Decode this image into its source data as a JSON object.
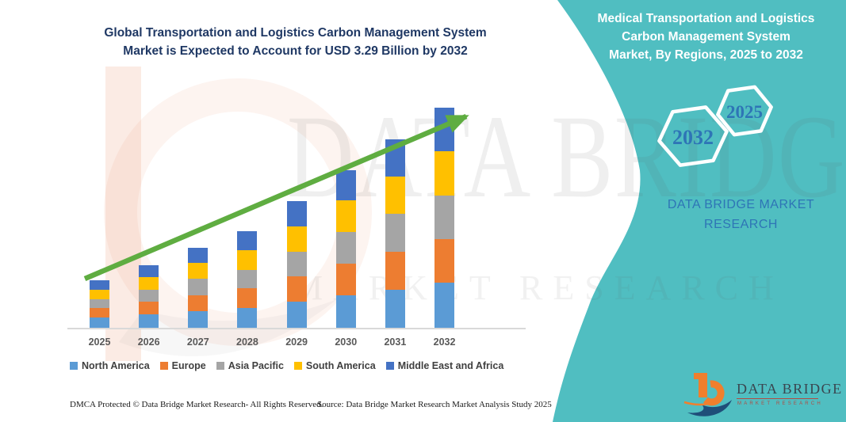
{
  "title": {
    "line1": "Global Transportation and Logistics Carbon Management System",
    "line2": "Market is Expected to Account for USD 3.29 Billion by 2032"
  },
  "right_panel": {
    "heading_lines": [
      "Medical Transportation and Logistics",
      "Carbon Management System",
      "Market, By Regions, 2025 to 2032"
    ],
    "hexagons": [
      {
        "label": "2032"
      },
      {
        "label": "2025"
      }
    ],
    "brand_line1": "DATA BRIDGE MARKET",
    "brand_line2": "RESEARCH"
  },
  "logo": {
    "wordmark": "DATA BRIDGE",
    "subtitle": "MARKET RESEARCH"
  },
  "watermark": {
    "big_text": "DATA BRIDGE",
    "sub_text": "MARKET RESEARCH"
  },
  "footer": {
    "left": "DMCA Protected © Data Bridge Market Research-  All Rights Reserved.",
    "right": "Source: Data Bridge Market Research  Market Analysis Study 2025"
  },
  "colors": {
    "teal_panel": "#50BEC1",
    "title_navy": "#1F3864",
    "arrow_green": "#5FAD41",
    "hexagon_year_blue": "#2E75B6",
    "brand_blue": "#2E75B6",
    "axis_label_gray": "#595959",
    "legend_text_gray": "#404040",
    "logo_orange": "#F07F2D",
    "logo_navy": "#1F4E79",
    "logo_red": "#B14A41"
  },
  "chart_data": {
    "type": "bar",
    "stacked": true,
    "title": "Global Transportation and Logistics Carbon Management System Market, USD Billion",
    "unit": "USD Billion",
    "categories": [
      "2025",
      "2026",
      "2027",
      "2028",
      "2029",
      "2030",
      "2031",
      "2032"
    ],
    "series": [
      {
        "name": "North America",
        "color": "#5B9BD5",
        "values": [
          0.15,
          0.2,
          0.25,
          0.3,
          0.39,
          0.48,
          0.57,
          0.67
        ]
      },
      {
        "name": "Europe",
        "color": "#ED7D31",
        "values": [
          0.15,
          0.19,
          0.24,
          0.29,
          0.38,
          0.48,
          0.57,
          0.66
        ]
      },
      {
        "name": "Asia Pacific",
        "color": "#A5A5A5",
        "values": [
          0.13,
          0.18,
          0.24,
          0.28,
          0.37,
          0.47,
          0.56,
          0.65
        ]
      },
      {
        "name": "South America",
        "color": "#FFC000",
        "values": [
          0.14,
          0.19,
          0.24,
          0.29,
          0.38,
          0.47,
          0.56,
          0.66
        ]
      },
      {
        "name": "Middle East and Africa",
        "color": "#4472C4",
        "values": [
          0.14,
          0.18,
          0.23,
          0.28,
          0.37,
          0.46,
          0.56,
          0.65
        ]
      }
    ],
    "totals": [
      0.71,
      0.94,
      1.2,
      1.44,
      1.89,
      2.36,
      2.82,
      3.29
    ],
    "highlight_value": "USD 3.29 Billion by 2032",
    "xlabel": "",
    "ylabel": "",
    "ylim": [
      0,
      3.4
    ],
    "grid": false,
    "legend_position": "bottom",
    "trend_arrow": true
  }
}
